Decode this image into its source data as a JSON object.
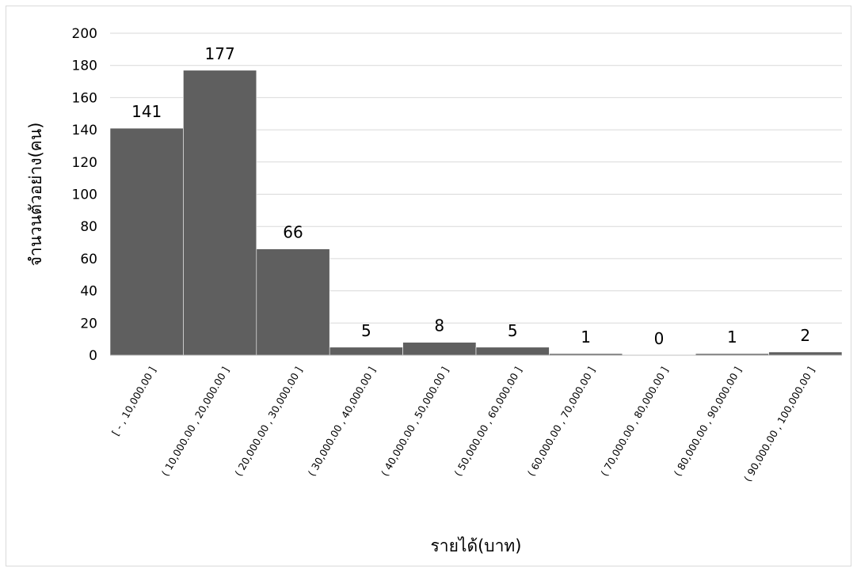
{
  "chart_data": {
    "type": "bar",
    "categories": [
      "[ -   ,  10,000.00 ]",
      "( 10,000.00 ,  20,000.00 ]",
      "( 20,000.00 ,  30,000.00 ]",
      "( 30,000.00 ,  40,000.00 ]",
      "( 40,000.00 ,  50,000.00 ]",
      "( 50,000.00 ,  60,000.00 ]",
      "( 60,000.00 ,  70,000.00 ]",
      "( 70,000.00 ,  80,000.00 ]",
      "( 80,000.00 ,  90,000.00 ]",
      "( 90,000.00 ,  100,000.00 ]"
    ],
    "values": [
      141,
      177,
      66,
      5,
      8,
      5,
      1,
      0,
      1,
      2
    ],
    "xlabel": "รายได้(บาท)",
    "ylabel": "จำนวนตัวอย่าง(คน)",
    "ylim": [
      0,
      200
    ],
    "yticks": [
      0,
      20,
      40,
      60,
      80,
      100,
      120,
      140,
      160,
      180,
      200
    ],
    "grid": true,
    "legend": "none",
    "bar_color": "#5f5f5f",
    "grid_color": "#d9d9d9"
  }
}
